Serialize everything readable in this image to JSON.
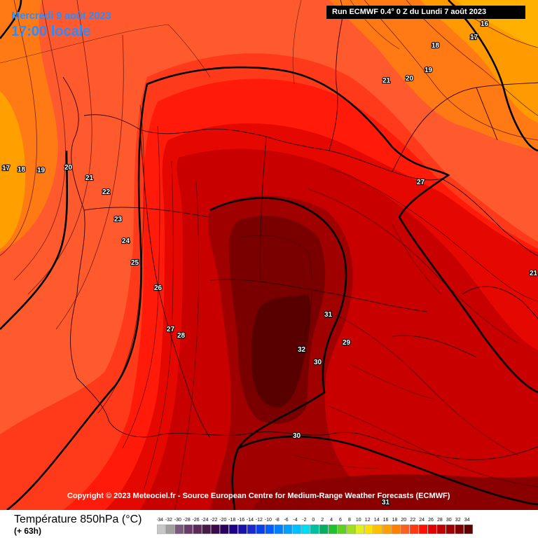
{
  "header": {
    "date": "Mercredi 9 août 2023",
    "time": "17:00 locale",
    "run": "Run ECMWF 0.4° 0 Z du Lundi 7 août 2023"
  },
  "copyright": "Copyright © 2023 Meteociel.fr - Source European Centre for Medium-Range Weather Forecasts (ECMWF)",
  "legend": {
    "title": "Température 850hPa (°C)",
    "subtitle": "(+ 63h)",
    "ticks": [
      "-34",
      "-32",
      "-30",
      "-28",
      "-26",
      "-24",
      "-22",
      "-20",
      "-18",
      "-16",
      "-14",
      "-12",
      "-10",
      "-8",
      "-6",
      "-4",
      "-2",
      "0",
      "2",
      "4",
      "6",
      "8",
      "10",
      "12",
      "14",
      "16",
      "18",
      "20",
      "22",
      "24",
      "26",
      "28",
      "30",
      "32",
      "34"
    ],
    "colors": [
      "#c8c8c8",
      "#a0a0a0",
      "#7a5a7a",
      "#6a3a6a",
      "#5a2a5a",
      "#4a1a4a",
      "#3a0a4a",
      "#2a0060",
      "#1e0088",
      "#1a10aa",
      "#1a2ad0",
      "#0a40e8",
      "#0060ff",
      "#0080ff",
      "#00a0ff",
      "#00c0ff",
      "#00dcf0",
      "#00c0a0",
      "#00b060",
      "#20c030",
      "#60d020",
      "#a0e020",
      "#e0f020",
      "#ffe000",
      "#ffc000",
      "#ffa000",
      "#ff8000",
      "#ff6020",
      "#ff3a10",
      "#ff1000",
      "#e00000",
      "#c00000",
      "#a00000",
      "#800000",
      "#600000"
    ]
  },
  "contour_labels": [
    {
      "text": "16"
    },
    {
      "text": "17"
    },
    {
      "text": "18"
    },
    {
      "text": "19"
    },
    {
      "text": "20"
    },
    {
      "text": "21"
    },
    {
      "text": "17"
    },
    {
      "text": "18"
    },
    {
      "text": "19"
    },
    {
      "text": "20"
    },
    {
      "text": "21"
    },
    {
      "text": "22"
    },
    {
      "text": "23"
    },
    {
      "text": "24"
    },
    {
      "text": "25"
    },
    {
      "text": "26"
    },
    {
      "text": "27"
    },
    {
      "text": "28"
    },
    {
      "text": "27"
    },
    {
      "text": "31"
    },
    {
      "text": "32"
    },
    {
      "text": "30"
    },
    {
      "text": "29"
    },
    {
      "text": "30"
    },
    {
      "text": "31"
    },
    {
      "text": "21"
    }
  ]
}
